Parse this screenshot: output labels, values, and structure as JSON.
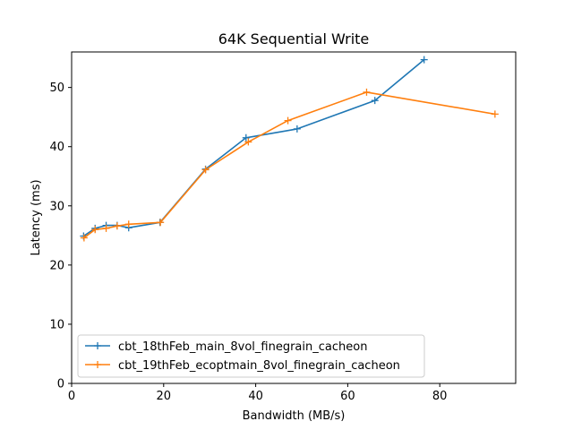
{
  "chart_data": {
    "type": "line",
    "title": "64K  Sequential Write",
    "xlabel": "Bandwidth (MB/s)",
    "ylabel": "Latency (ms)",
    "xlim": [
      0,
      96.5
    ],
    "ylim": [
      0,
      56
    ],
    "xticks": [
      0,
      20,
      40,
      60,
      80
    ],
    "yticks": [
      0,
      10,
      20,
      30,
      40,
      50
    ],
    "grid": false,
    "legend_position": "lower-left",
    "marker": "+",
    "series": [
      {
        "name": "cbt_18thFeb_main_8vol_finegrain_cacheon",
        "color": "#1f77b4",
        "x": [
          2.6,
          5.1,
          7.5,
          9.9,
          12.4,
          19.2,
          29.1,
          37.9,
          49.0,
          65.9,
          76.6
        ],
        "y": [
          24.9,
          26.2,
          26.7,
          26.7,
          26.3,
          27.2,
          36.2,
          41.5,
          43.0,
          47.8,
          54.7
        ]
      },
      {
        "name": "cbt_19thFeb_ecoptmain_8vol_finegrain_cacheon",
        "color": "#ff7f0e",
        "x": [
          2.7,
          5.1,
          7.5,
          9.9,
          12.4,
          19.3,
          29.1,
          38.4,
          47.0,
          64.1,
          92.0
        ],
        "y": [
          24.6,
          26.0,
          26.2,
          26.6,
          26.9,
          27.2,
          36.1,
          40.8,
          44.4,
          49.2,
          45.5
        ]
      }
    ]
  }
}
